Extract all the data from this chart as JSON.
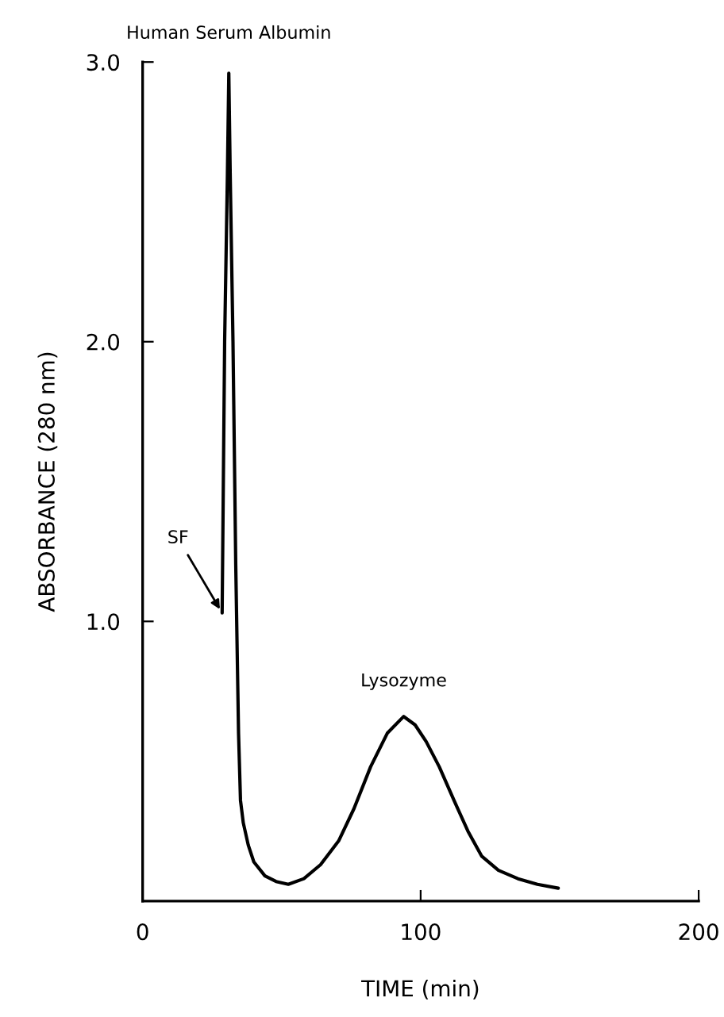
{
  "chart_data": {
    "type": "line",
    "xlabel": "TIME (min)",
    "ylabel": "ABSORBANCE (280 nm)",
    "x": [
      28.6,
      29.5,
      30.5,
      31,
      31.5,
      32.5,
      33.5,
      34.5,
      35.2,
      36.2,
      38,
      40,
      44,
      48,
      52.4,
      58,
      64,
      70.5,
      76,
      82,
      88,
      93.9,
      98,
      102,
      106.7,
      112,
      117,
      122,
      128,
      135,
      142,
      149.5
    ],
    "series": [
      {
        "color": "#000000",
        "values": [
          1.03,
          2.0,
          2.6,
          2.96,
          2.6,
          2.0,
          1.2,
          0.6,
          0.36,
          0.28,
          0.2,
          0.14,
          0.09,
          0.07,
          0.06,
          0.08,
          0.13,
          0.215,
          0.33,
          0.48,
          0.6,
          0.66,
          0.63,
          0.57,
          0.48,
          0.36,
          0.25,
          0.16,
          0.11,
          0.08,
          0.06,
          0.046
        ]
      }
    ],
    "xlim": [
      0,
      200
    ],
    "ylim": [
      0,
      3
    ],
    "xticks": [
      0,
      100,
      200
    ],
    "yticks": [
      {
        "value": 1,
        "label": "1.0"
      },
      {
        "value": 2,
        "label": "2.0"
      },
      {
        "value": 3,
        "label": "3.0"
      }
    ],
    "grid": false,
    "legend": false,
    "marker": "none",
    "line_style": "solid",
    "annotations": [
      {
        "text": "Human Serum Albumin",
        "x": 31,
        "y": 2.96
      },
      {
        "text": "SF",
        "x": 28.6,
        "y": 1.03
      },
      {
        "text": "Lysozyme",
        "x": 93.9,
        "y": 0.66
      }
    ]
  }
}
